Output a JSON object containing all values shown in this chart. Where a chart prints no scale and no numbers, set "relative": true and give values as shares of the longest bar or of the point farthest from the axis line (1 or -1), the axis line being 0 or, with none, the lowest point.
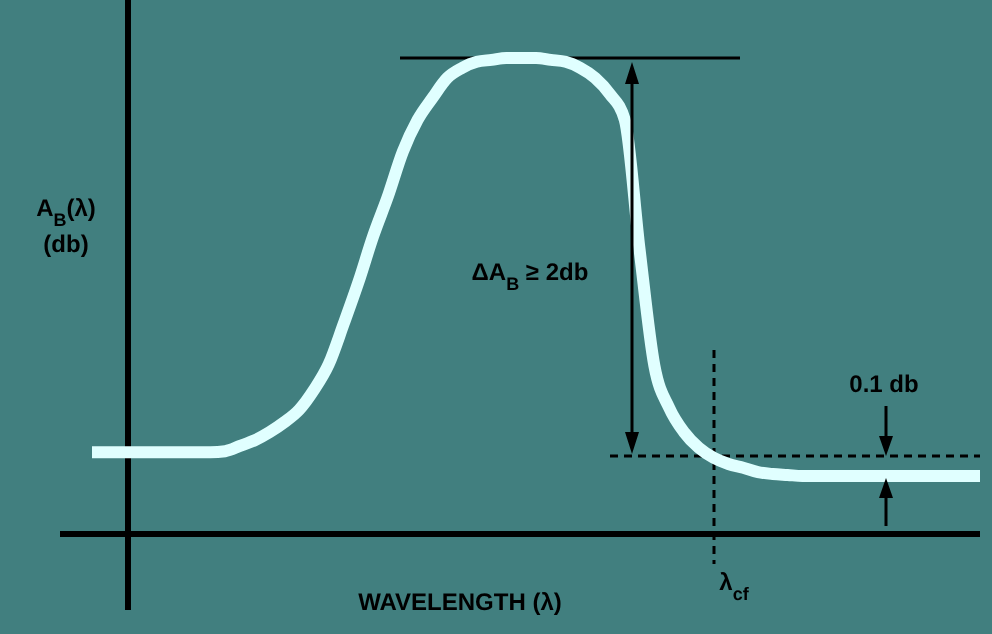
{
  "chart_data": {
    "type": "line",
    "relative": true,
    "ylabel": "A$_{B}$(λ)\n(db)",
    "xlabel": "WAVELENGTH (λ)",
    "categories": [
      null,
      null,
      null,
      null,
      null,
      null,
      null,
      null,
      null,
      null,
      null,
      null,
      null,
      null,
      null,
      null,
      null,
      null,
      null,
      null,
      null,
      null,
      null,
      null,
      null,
      null,
      null,
      null,
      null,
      null,
      null,
      null,
      null,
      null,
      null,
      null,
      null,
      null,
      null,
      null,
      null,
      null,
      null,
      null,
      null,
      null,
      null,
      null,
      null,
      null,
      null,
      null,
      null,
      null,
      null,
      null,
      null,
      null,
      null,
      null,
      null
    ],
    "series": [
      {
        "color": "#e0ffff",
        "values": [
          0.172,
          0.172,
          0.172,
          0.172,
          0.172,
          0.172,
          0.172,
          0.172,
          0.172,
          0.174,
          0.185,
          0.197,
          0.214,
          0.235,
          0.261,
          0.303,
          0.357,
          0.441,
          0.529,
          0.626,
          0.71,
          0.803,
          0.87,
          0.916,
          0.958,
          0.979,
          0.992,
          0.996,
          1,
          1,
          1,
          0.996,
          0.992,
          0.979,
          0.958,
          0.924,
          0.87,
          0.597,
          0.353,
          0.265,
          0.214,
          0.181,
          0.16,
          0.147,
          0.139,
          0.13,
          0.126,
          0.124,
          0.122,
          0.122,
          0.122,
          0.122,
          0.122,
          0.122,
          0.122,
          0.122,
          0.122,
          0.122,
          0.122,
          0.122,
          0.122
        ]
      }
    ],
    "ref_lines": [
      {
        "axis": "y",
        "value": 1,
        "color": "#000000",
        "line_style": "solid"
      },
      {
        "axis": "y",
        "value": 0.164,
        "color": "#000000",
        "line_style": "dashed"
      }
    ],
    "annotations": [
      "ΔA$_{B}$ ≥ 2db",
      "0.1 db",
      "λ$_{cf}$"
    ],
    "line_style": "solid",
    "marker": "none"
  }
}
